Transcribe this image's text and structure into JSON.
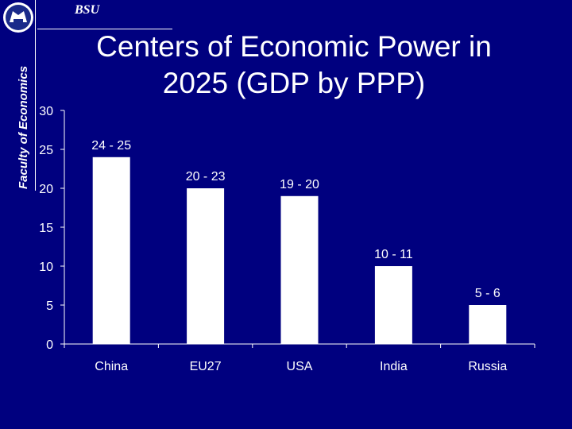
{
  "header": {
    "org": "BSU",
    "faculty": "Faculty of Economics"
  },
  "slide": {
    "title_line1": "Centers of Economic Power in",
    "title_line2": "2025 (GDP by PPP)"
  },
  "colors": {
    "background": "#00007f",
    "bars": "#ffffff",
    "text": "#ffffff"
  },
  "chart_data": {
    "type": "bar",
    "title": "Centers of Economic Power in 2025 (GDP by PPP)",
    "categories": [
      "China",
      "EU27",
      "USA",
      "India",
      "Russia"
    ],
    "values": [
      24,
      20,
      19,
      10,
      5
    ],
    "data_labels": [
      "24 - 25",
      "20 - 23",
      "19 - 20",
      "10 - 11",
      "5 - 6"
    ],
    "yticks": [
      0,
      5,
      10,
      15,
      20,
      25,
      30
    ],
    "ylim": [
      0,
      30
    ],
    "xlabel": "",
    "ylabel": "",
    "grid": false,
    "legend": "none"
  }
}
